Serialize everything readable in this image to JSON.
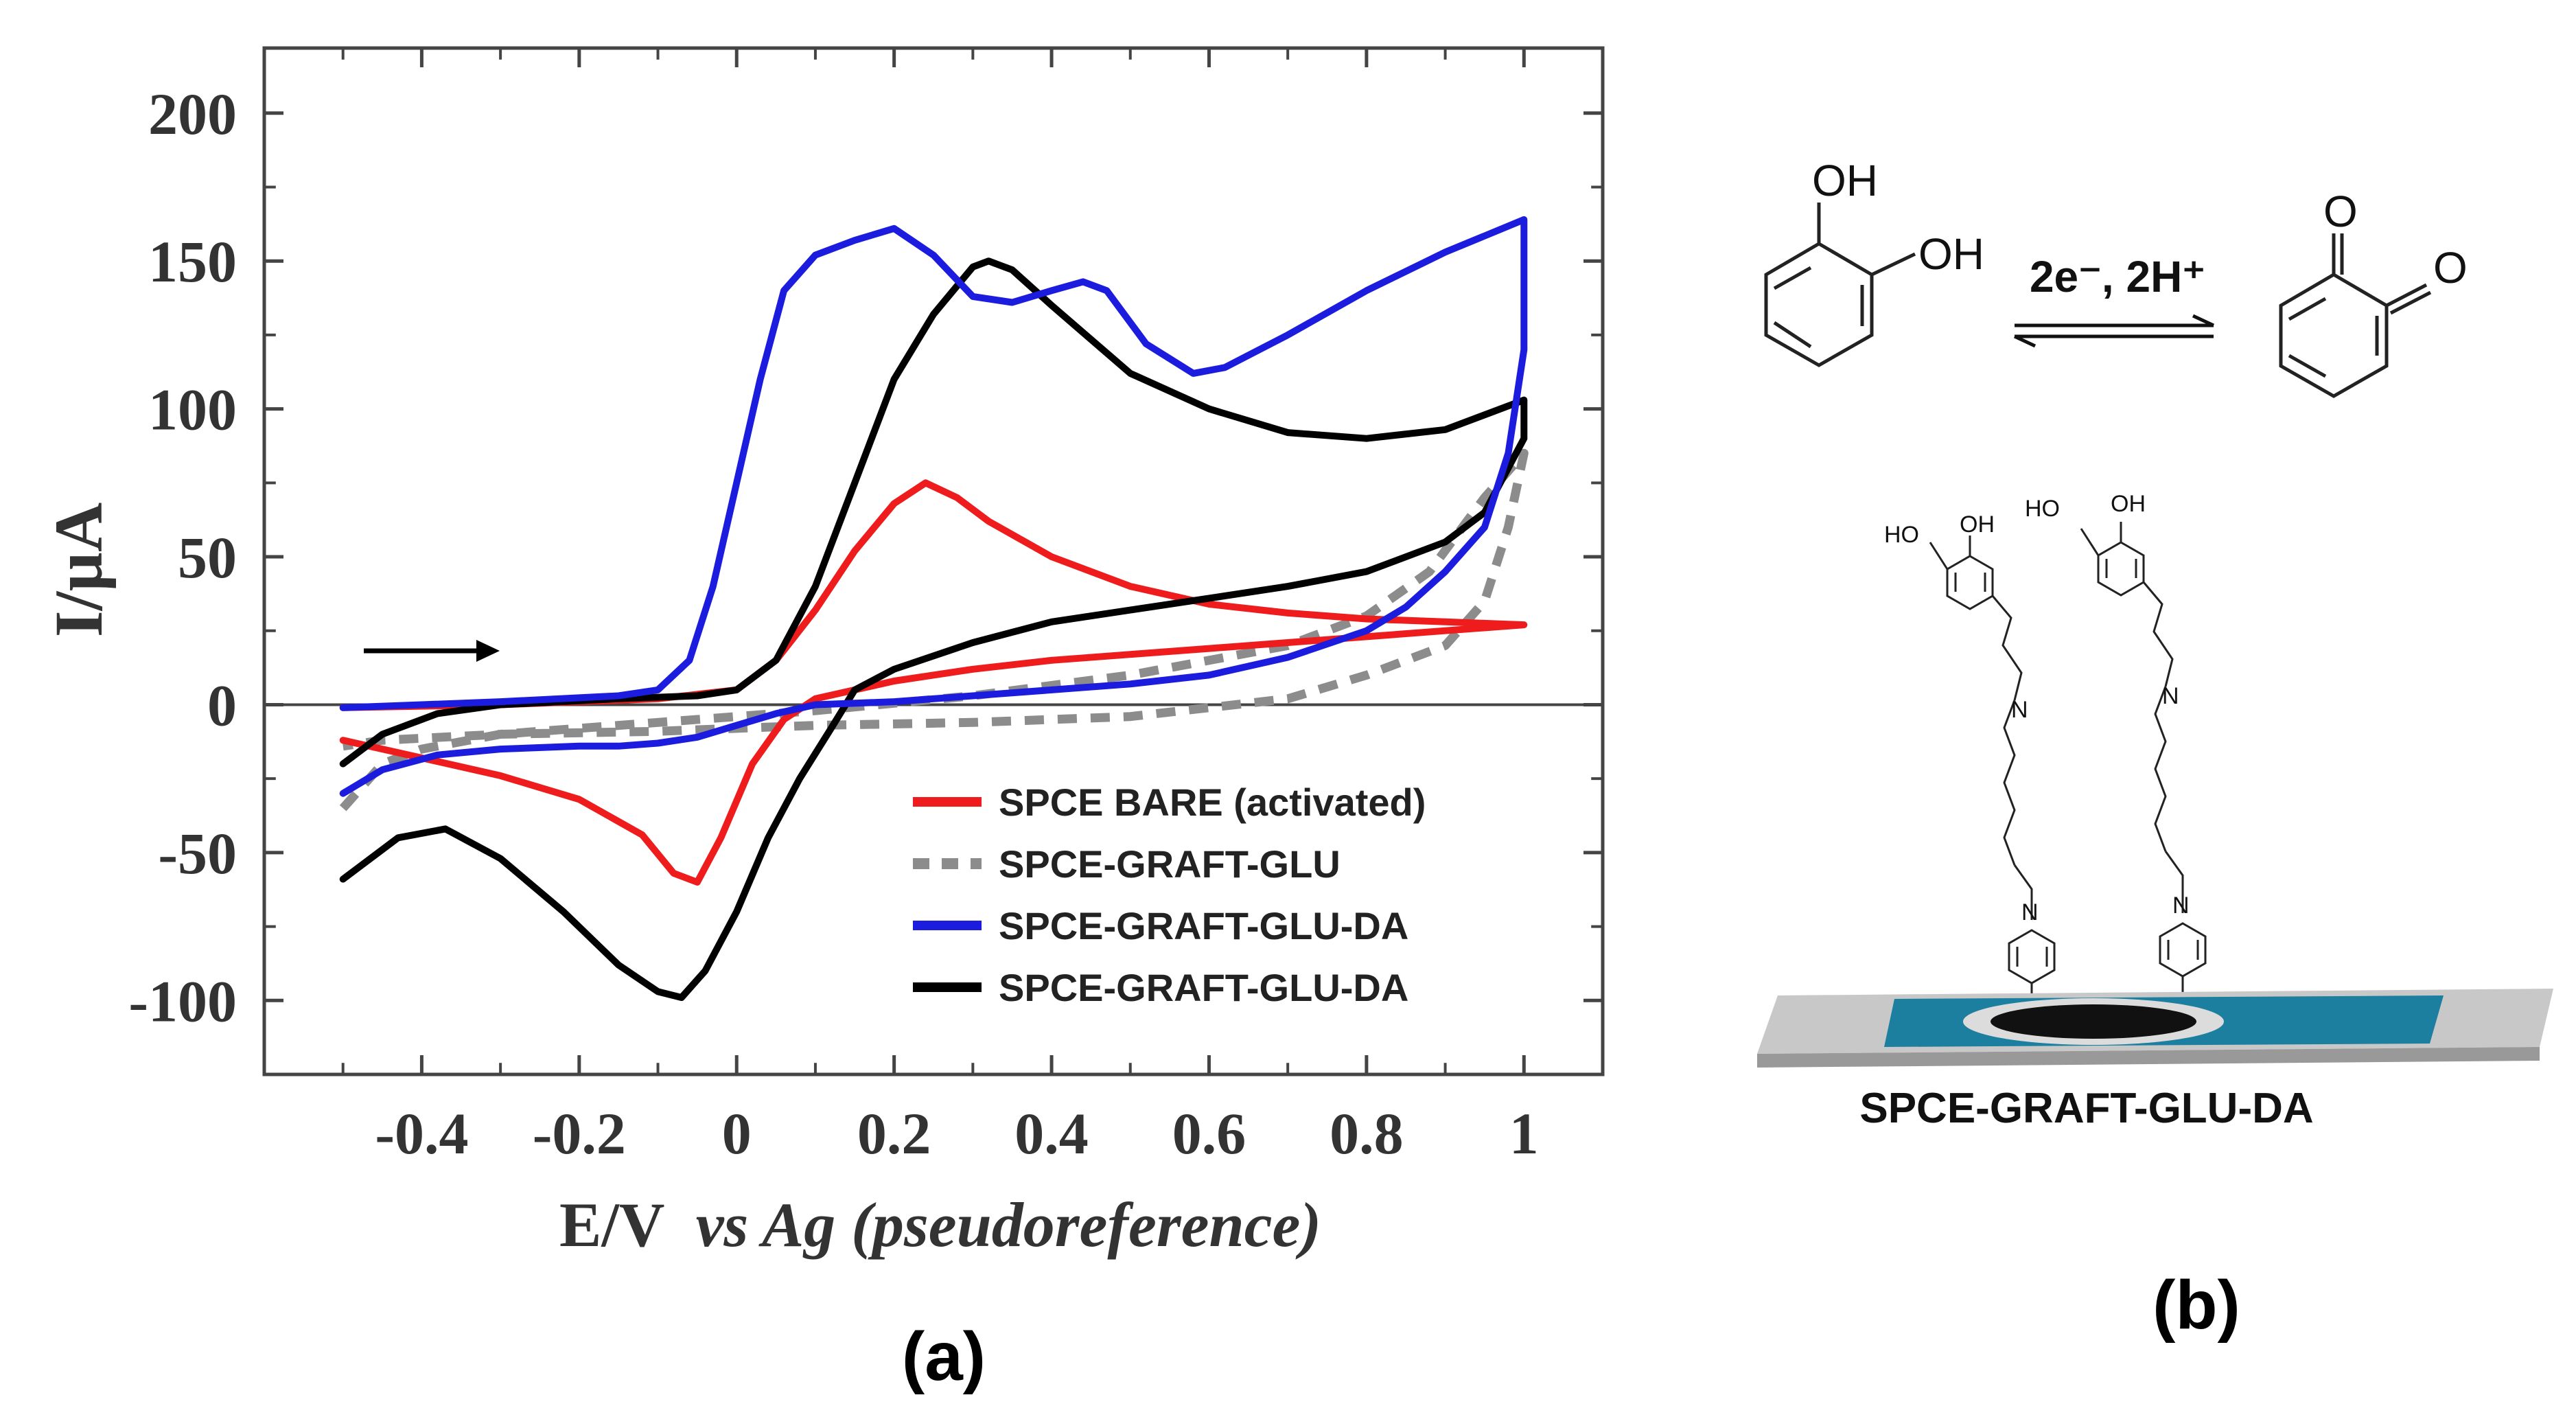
{
  "chart_data": {
    "type": "line",
    "title": "",
    "panel_label": "(a)",
    "xlabel_main": "E/V",
    "xlabel_italic": "vs Ag (pseudoreference)",
    "ylabel": "I/µA",
    "xlim": [
      -0.6,
      1.1
    ],
    "ylim": [
      -125,
      222
    ],
    "x_ticks": [
      -0.4,
      -0.2,
      0,
      0.2,
      0.4,
      0.6,
      0.8,
      1
    ],
    "x_tick_labels": [
      "-0.4",
      "-0.2",
      "0",
      "0.2",
      "0.4",
      "0.6",
      "0.8",
      "1"
    ],
    "y_ticks": [
      -100,
      -50,
      0,
      50,
      100,
      150,
      200
    ],
    "y_tick_labels": [
      "-100",
      "-50",
      "0",
      "50",
      "100",
      "150",
      "200"
    ],
    "zero_line": true,
    "scan_direction_arrow": "right",
    "legend_position": "bottom-right",
    "series": [
      {
        "name": "SPCE BARE (activated)",
        "color": "#ee1c1c",
        "dash": "solid",
        "points": [
          [
            -0.5,
            -1
          ],
          [
            -0.3,
            0
          ],
          [
            -0.1,
            2
          ],
          [
            0,
            5
          ],
          [
            0.05,
            15
          ],
          [
            0.1,
            32
          ],
          [
            0.15,
            52
          ],
          [
            0.2,
            68
          ],
          [
            0.24,
            75
          ],
          [
            0.28,
            70
          ],
          [
            0.32,
            62
          ],
          [
            0.4,
            50
          ],
          [
            0.5,
            40
          ],
          [
            0.6,
            34
          ],
          [
            0.7,
            31
          ],
          [
            0.8,
            29
          ],
          [
            0.9,
            28
          ],
          [
            1.0,
            27
          ],
          [
            0.9,
            25
          ],
          [
            0.8,
            23
          ],
          [
            0.7,
            21
          ],
          [
            0.6,
            19
          ],
          [
            0.5,
            17
          ],
          [
            0.4,
            15
          ],
          [
            0.3,
            12
          ],
          [
            0.2,
            8
          ],
          [
            0.15,
            5
          ],
          [
            0.1,
            2
          ],
          [
            0.06,
            -5
          ],
          [
            0.02,
            -20
          ],
          [
            -0.02,
            -45
          ],
          [
            -0.05,
            -60
          ],
          [
            -0.08,
            -57
          ],
          [
            -0.12,
            -44
          ],
          [
            -0.2,
            -32
          ],
          [
            -0.3,
            -24
          ],
          [
            -0.4,
            -18
          ],
          [
            -0.5,
            -12
          ]
        ]
      },
      {
        "name": "SPCE-GRAFT-GLU",
        "color": "#8c8c8c",
        "dash": "dashed",
        "points": [
          [
            -0.5,
            -35
          ],
          [
            -0.45,
            -20
          ],
          [
            -0.4,
            -15
          ],
          [
            -0.3,
            -10
          ],
          [
            -0.1,
            -6
          ],
          [
            0.1,
            -2
          ],
          [
            0.3,
            3
          ],
          [
            0.5,
            10
          ],
          [
            0.7,
            20
          ],
          [
            0.8,
            30
          ],
          [
            0.88,
            45
          ],
          [
            0.95,
            70
          ],
          [
            1.0,
            85
          ],
          [
            0.98,
            60
          ],
          [
            0.95,
            35
          ],
          [
            0.9,
            20
          ],
          [
            0.8,
            10
          ],
          [
            0.7,
            2
          ],
          [
            0.5,
            -4
          ],
          [
            0.3,
            -6
          ],
          [
            0.1,
            -7
          ],
          [
            -0.1,
            -9
          ],
          [
            -0.3,
            -10
          ],
          [
            -0.45,
            -12
          ],
          [
            -0.5,
            -14
          ]
        ]
      },
      {
        "name": "SPCE-GRAFT-GLU-DA",
        "color": "#1c1cde",
        "dash": "solid",
        "points": [
          [
            -0.5,
            -30
          ],
          [
            -0.45,
            -22
          ],
          [
            -0.38,
            -17
          ],
          [
            -0.3,
            -15
          ],
          [
            -0.2,
            -14
          ],
          [
            -0.15,
            -14
          ],
          [
            -0.1,
            -13
          ],
          [
            -0.05,
            -11
          ],
          [
            0,
            -7
          ],
          [
            0.05,
            -3
          ],
          [
            0.1,
            0
          ],
          [
            0.2,
            1
          ],
          [
            0.3,
            3
          ],
          [
            0.4,
            5
          ],
          [
            0.5,
            7
          ],
          [
            0.6,
            10
          ],
          [
            0.7,
            16
          ],
          [
            0.8,
            25
          ],
          [
            0.85,
            33
          ],
          [
            0.9,
            45
          ],
          [
            0.95,
            60
          ],
          [
            0.98,
            85
          ],
          [
            1.0,
            120
          ],
          [
            1.0,
            164
          ],
          [
            0.9,
            153
          ],
          [
            0.8,
            140
          ],
          [
            0.7,
            125
          ],
          [
            0.62,
            114
          ],
          [
            0.58,
            112
          ],
          [
            0.52,
            122
          ],
          [
            0.47,
            140
          ],
          [
            0.44,
            143
          ],
          [
            0.4,
            140
          ],
          [
            0.35,
            136
          ],
          [
            0.3,
            138
          ],
          [
            0.25,
            152
          ],
          [
            0.2,
            161
          ],
          [
            0.15,
            157
          ],
          [
            0.1,
            152
          ],
          [
            0.06,
            140
          ],
          [
            0.03,
            110
          ],
          [
            0,
            75
          ],
          [
            -0.03,
            40
          ],
          [
            -0.06,
            15
          ],
          [
            -0.1,
            5
          ],
          [
            -0.15,
            3
          ],
          [
            -0.3,
            1
          ],
          [
            -0.4,
            0
          ],
          [
            -0.5,
            -1
          ]
        ]
      },
      {
        "name": "SPCE-GRAFT-GLU-DA",
        "color": "#000000",
        "dash": "solid",
        "points": [
          [
            -0.5,
            -20
          ],
          [
            -0.45,
            -10
          ],
          [
            -0.38,
            -3
          ],
          [
            -0.3,
            0
          ],
          [
            -0.15,
            2
          ],
          [
            -0.05,
            3
          ],
          [
            0,
            5
          ],
          [
            0.05,
            15
          ],
          [
            0.1,
            40
          ],
          [
            0.15,
            75
          ],
          [
            0.2,
            110
          ],
          [
            0.25,
            132
          ],
          [
            0.3,
            148
          ],
          [
            0.32,
            150
          ],
          [
            0.35,
            147
          ],
          [
            0.4,
            135
          ],
          [
            0.5,
            112
          ],
          [
            0.6,
            100
          ],
          [
            0.7,
            92
          ],
          [
            0.8,
            90
          ],
          [
            0.9,
            93
          ],
          [
            1.0,
            103
          ],
          [
            1.0,
            90
          ],
          [
            0.95,
            65
          ],
          [
            0.9,
            55
          ],
          [
            0.8,
            45
          ],
          [
            0.7,
            40
          ],
          [
            0.6,
            36
          ],
          [
            0.5,
            32
          ],
          [
            0.4,
            28
          ],
          [
            0.3,
            21
          ],
          [
            0.2,
            12
          ],
          [
            0.15,
            5
          ],
          [
            0.12,
            -8
          ],
          [
            0.08,
            -25
          ],
          [
            0.04,
            -45
          ],
          [
            0,
            -70
          ],
          [
            -0.04,
            -90
          ],
          [
            -0.07,
            -99
          ],
          [
            -0.1,
            -97
          ],
          [
            -0.15,
            -88
          ],
          [
            -0.22,
            -70
          ],
          [
            -0.3,
            -52
          ],
          [
            -0.37,
            -42
          ],
          [
            -0.43,
            -45
          ],
          [
            -0.5,
            -59
          ]
        ]
      }
    ]
  },
  "panel_b": {
    "label": "(b)",
    "reaction_label": "2e⁻, 2H⁺",
    "reactant_labels": [
      "OH",
      "OH"
    ],
    "product_labels": [
      "O",
      "O"
    ],
    "molecule_labels": [
      "HO",
      "OH",
      "HO",
      "OH",
      "N",
      "N",
      "N",
      "N"
    ],
    "electrode_caption": "SPCE-GRAFT-GLU-DA"
  }
}
